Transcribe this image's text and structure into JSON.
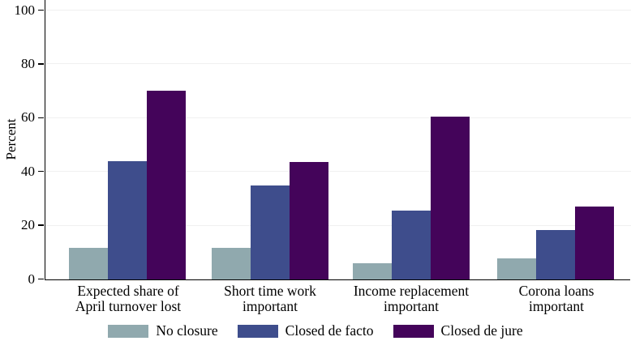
{
  "chart_data": {
    "type": "bar",
    "title": "",
    "xlabel": "",
    "ylabel": "Percent",
    "ylim": [
      0,
      100
    ],
    "yticks": [
      0,
      20,
      40,
      60,
      80,
      100
    ],
    "grid": true,
    "legend_position": "bottom",
    "categories": [
      "Expected share of\nApril turnover lost",
      "Short time work\nimportant",
      "Income replacement\nimportant",
      "Corona loans\nimportant"
    ],
    "series": [
      {
        "name": "No closure",
        "color": "#90A9AE",
        "values": [
          11.5,
          11.5,
          5.8,
          7.6
        ]
      },
      {
        "name": "Closed de facto",
        "color": "#3E4D8C",
        "values": [
          43.8,
          34.8,
          25.6,
          18.2
        ]
      },
      {
        "name": "Closed de jure",
        "color": "#44045A",
        "values": [
          70.0,
          43.4,
          60.3,
          27.0
        ]
      }
    ],
    "colors": {
      "axis": "#000000",
      "gridline": "#f0f0f0",
      "background": "#ffffff"
    }
  }
}
